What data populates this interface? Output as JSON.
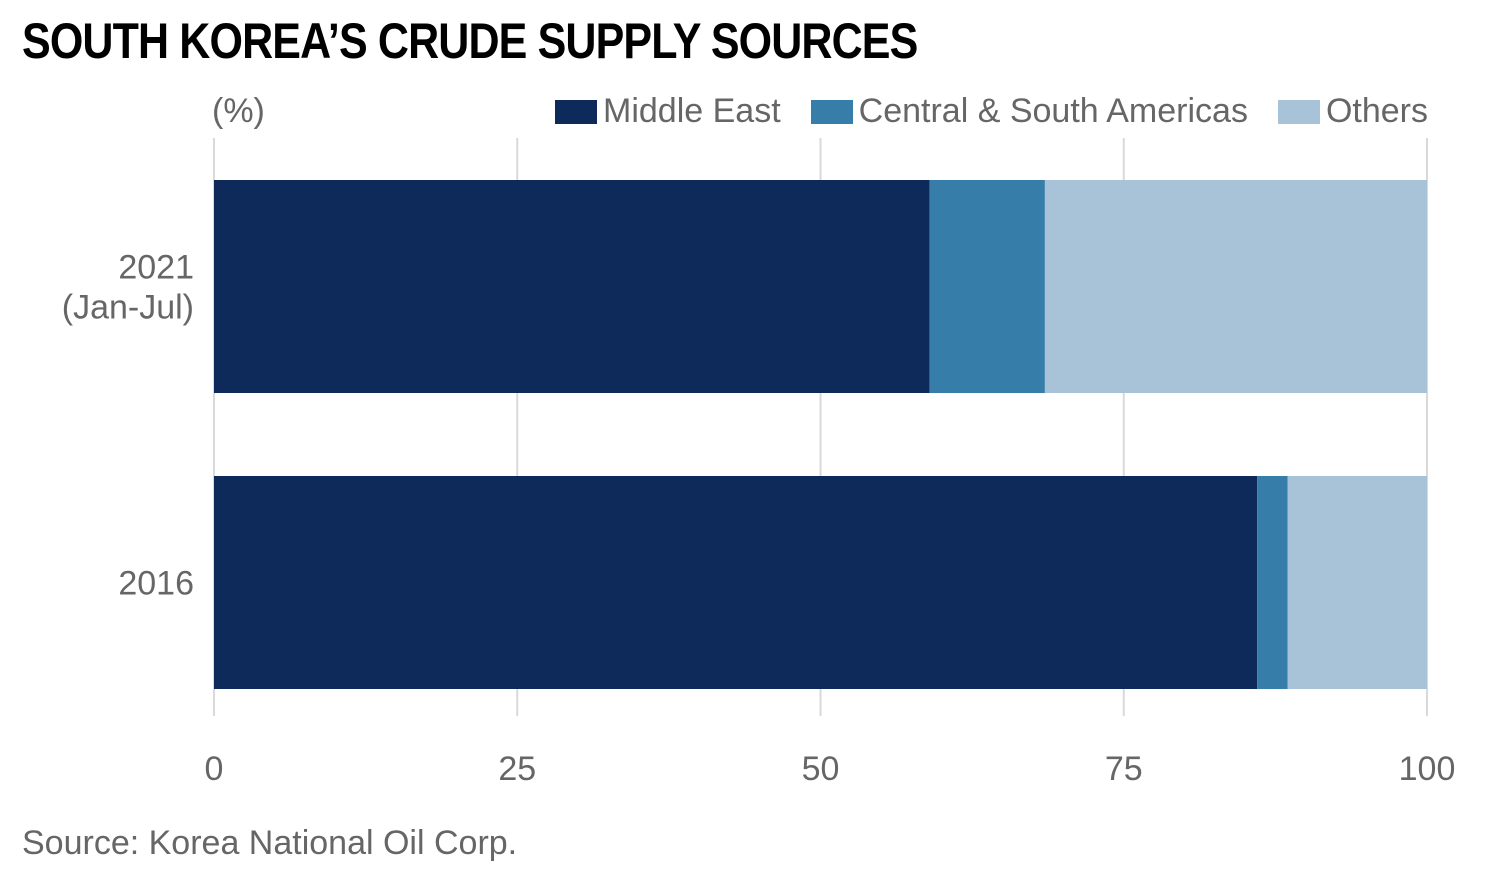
{
  "colors": {
    "middle_east": "#0e2a5a",
    "americas": "#367ea9",
    "others": "#a8c3d8",
    "grid": "#d9d9d9",
    "text": "#666666"
  },
  "chart_data": {
    "type": "bar",
    "orientation": "horizontal",
    "stacked": true,
    "title": "SOUTH KOREA’S CRUDE SUPPLY SOURCES",
    "unit_label": "(%)",
    "source": "Source: Korea National Oil Corp.",
    "categories": [
      [
        "2021",
        "(Jan-Jul)"
      ],
      [
        "2016"
      ]
    ],
    "series": [
      {
        "name": "Middle East",
        "values": [
          59,
          86
        ]
      },
      {
        "name": "Central & South Americas",
        "values": [
          9.5,
          2.5
        ]
      },
      {
        "name": "Others",
        "values": [
          31.5,
          11.5
        ]
      }
    ],
    "xlim": [
      0,
      100
    ],
    "xticks": [
      0,
      25,
      50,
      75,
      100
    ],
    "grid": true,
    "legend": "top-right"
  }
}
